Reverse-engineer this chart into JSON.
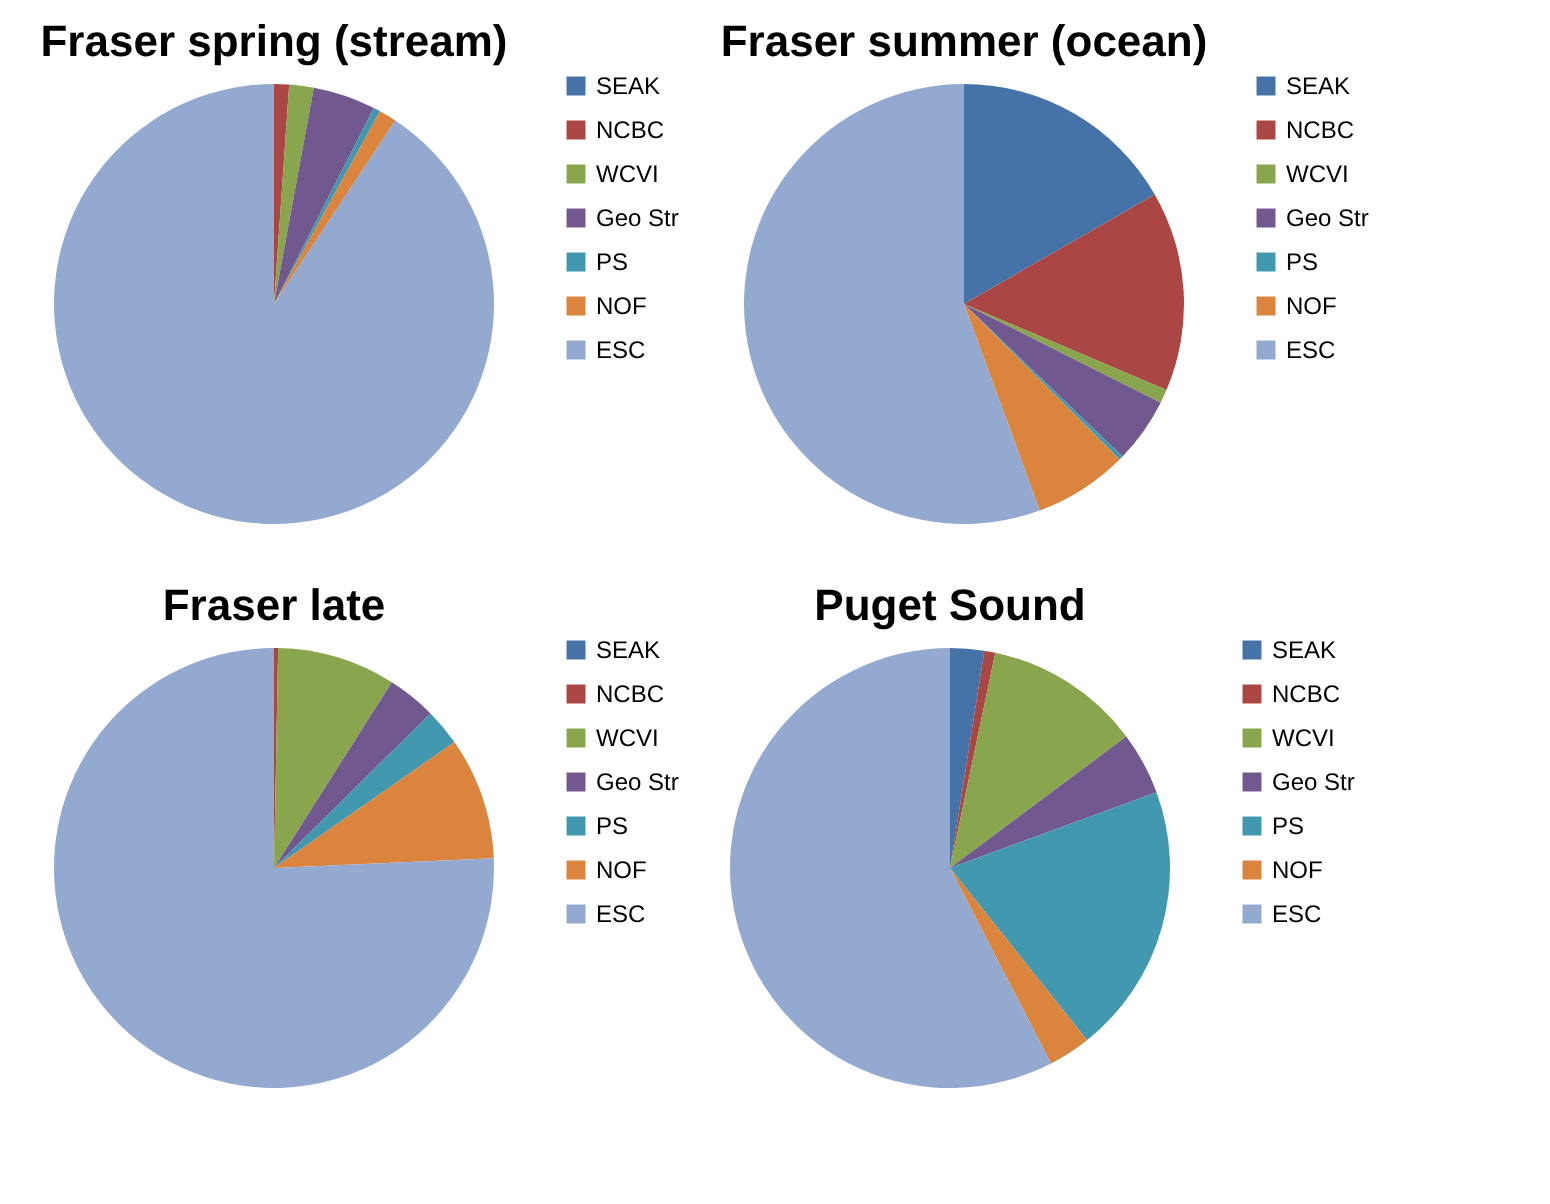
{
  "chart_data": [
    {
      "type": "pie",
      "title": "Fraser spring (stream)",
      "categories": [
        "SEAK",
        "NCBC",
        "WCVI",
        "Geo Str",
        "PS",
        "NOF",
        "ESC"
      ],
      "values": [
        0,
        1.1,
        1.8,
        4.6,
        0.5,
        1.3,
        90.7
      ],
      "colors": [
        "#4572a7",
        "#aa4643",
        "#89a54e",
        "#71588f",
        "#4198af",
        "#db843d",
        "#93a9cf"
      ],
      "legend": "right"
    },
    {
      "type": "pie",
      "title": "Fraser summer (ocean)",
      "categories": [
        "SEAK",
        "NCBC",
        "WCVI",
        "Geo Str",
        "PS",
        "NOF",
        "ESC"
      ],
      "values": [
        16.7,
        14.7,
        1,
        4.8,
        0.3,
        6.9,
        55.6
      ],
      "colors": [
        "#4572a7",
        "#aa4643",
        "#89a54e",
        "#71588f",
        "#4198af",
        "#db843d",
        "#93a9cf"
      ],
      "legend": "right"
    },
    {
      "type": "pie",
      "title": "Fraser late",
      "categories": [
        "SEAK",
        "NCBC",
        "WCVI",
        "Geo Str",
        "PS",
        "NOF",
        "ESC"
      ],
      "values": [
        0,
        0.3,
        8.7,
        3.6,
        2.7,
        9.0,
        75.7
      ],
      "colors": [
        "#4572a7",
        "#aa4643",
        "#89a54e",
        "#71588f",
        "#4198af",
        "#db843d",
        "#93a9cf"
      ],
      "legend": "right"
    },
    {
      "type": "pie",
      "title": "Puget Sound",
      "categories": [
        "SEAK",
        "NCBC",
        "WCVI",
        "Geo Str",
        "PS",
        "NOF",
        "ESC"
      ],
      "values": [
        2.5,
        0.8,
        11.5,
        4.6,
        19.9,
        3.1,
        57.6
      ],
      "colors": [
        "#4572a7",
        "#aa4643",
        "#89a54e",
        "#71588f",
        "#4198af",
        "#db843d",
        "#93a9cf"
      ],
      "legend": "right"
    }
  ]
}
